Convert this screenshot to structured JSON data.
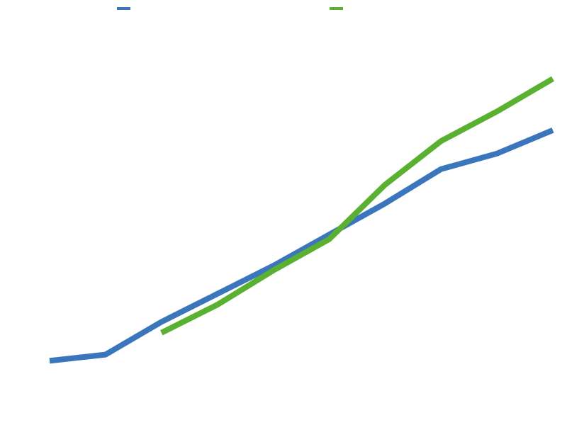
{
  "chart_data": {
    "type": "line",
    "title": "",
    "xlabel": "",
    "ylabel": "",
    "x": [
      0,
      1,
      2,
      3,
      4,
      5,
      6,
      7,
      8,
      9
    ],
    "xlim": [
      0,
      9
    ],
    "ylim": [
      0,
      100
    ],
    "grid": false,
    "legend": "top",
    "series": [
      {
        "color": "#3b76bd",
        "values": [
          11.5,
          13.5,
          24,
          33,
          42,
          52,
          62,
          73,
          78,
          85.5
        ]
      },
      {
        "color": "#5ab030",
        "values": [
          null,
          null,
          20.5,
          29.5,
          40.5,
          50.5,
          68,
          82,
          91.5,
          102
        ]
      }
    ]
  }
}
